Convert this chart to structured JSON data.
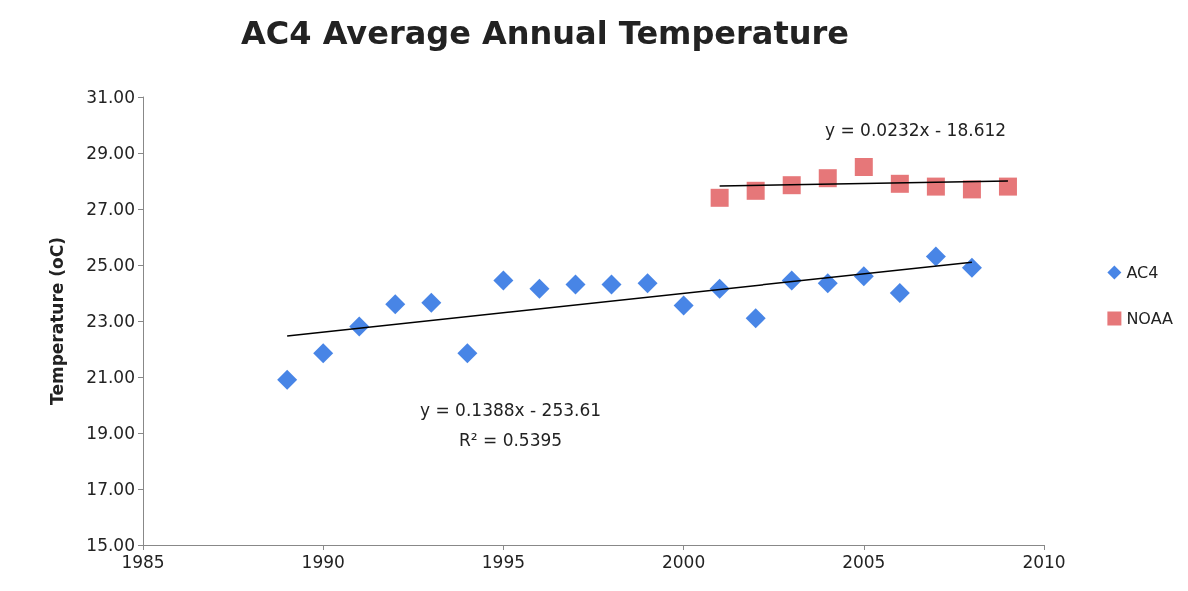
{
  "chart_data": {
    "type": "scatter",
    "title": "AC4 Average Annual Temperature",
    "ylabel": "Temperature (oC)",
    "series": [
      {
        "name": "AC4",
        "color": "#1a66e0",
        "marker": "diamond",
        "x": [
          1989,
          1990,
          1991,
          1992,
          1993,
          1994,
          1995,
          1996,
          1997,
          1998,
          1999,
          2000,
          2001,
          2002,
          2003,
          2004,
          2005,
          2006,
          2007,
          2008
        ],
        "values": [
          20.9,
          21.85,
          22.8,
          23.6,
          23.65,
          21.85,
          24.45,
          24.15,
          24.3,
          24.3,
          24.35,
          23.55,
          24.15,
          23.1,
          24.45,
          24.35,
          24.6,
          24.0,
          25.3,
          24.9
        ]
      },
      {
        "name": "NOAA",
        "color": "#e05558",
        "marker": "square",
        "x": [
          2001,
          2002,
          2003,
          2004,
          2005,
          2006,
          2007,
          2008,
          2009
        ],
        "values": [
          27.4,
          27.65,
          27.85,
          28.1,
          28.5,
          27.9,
          27.8,
          27.7,
          27.8
        ]
      },
      {
        "type": "line",
        "color": "#000000",
        "marker": "none",
        "x": [
          1989,
          2008
        ],
        "values": [
          22.46,
          25.1
        ]
      },
      {
        "type": "line",
        "color": "#000000",
        "marker": "none",
        "x": [
          2001,
          2009
        ],
        "values": [
          27.82,
          28.0
        ]
      }
    ],
    "xlim": [
      1985,
      2010
    ],
    "xticks": [
      1985,
      1990,
      1995,
      2000,
      2005,
      2010
    ],
    "ylim": [
      15,
      31
    ],
    "yticks": [
      {
        "value": 15,
        "label": "15.00"
      },
      {
        "value": 17,
        "label": "17.00"
      },
      {
        "value": 19,
        "label": "19.00"
      },
      {
        "value": 21,
        "label": "21.00"
      },
      {
        "value": 23,
        "label": "23.00"
      },
      {
        "value": 25,
        "label": "25.00"
      },
      {
        "value": 27,
        "label": "27.00"
      },
      {
        "value": 29,
        "label": "29.00"
      },
      {
        "value": 31,
        "label": "31.00"
      }
    ],
    "grid": false,
    "legend": "right",
    "annotations": [
      "y = 0.1388x - 253.61\nR² = 0.5395",
      "y = 0.0232x - 18.612"
    ]
  }
}
